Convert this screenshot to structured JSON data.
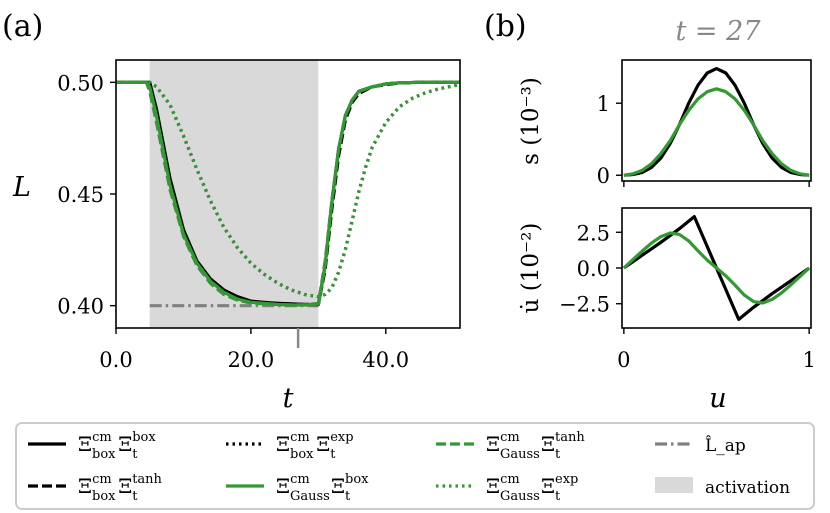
{
  "panel_a": {
    "label": "(a)",
    "xlabel": "t",
    "ylabel": "L",
    "xticks": [
      "0.0",
      "20.0",
      "40.0"
    ],
    "yticks": [
      "0.40",
      "0.45",
      "0.50"
    ]
  },
  "panel_b": {
    "label": "(b)",
    "title": "t = 27",
    "top_ylabel": "s (10⁻³)",
    "bottom_ylabel": "u̇ (10⁻²)",
    "xlabel": "u",
    "top_yticks": [
      "0",
      "1"
    ],
    "bottom_yticks": [
      "−2.5",
      "0.0",
      "2.5"
    ],
    "xticks": [
      "0",
      "1"
    ]
  },
  "legend": [
    {
      "id": "box-box",
      "label": "Ξ_box^cm Ξ_t^box",
      "main": "Ξ",
      "sub1": "box",
      "sup1": "cm",
      "sub2": "t",
      "sup2": "box",
      "color": "#000000",
      "style": "solid"
    },
    {
      "id": "box-tanh",
      "label": "Ξ_box^cm Ξ_t^tanh",
      "main": "Ξ",
      "sub1": "box",
      "sup1": "cm",
      "sub2": "t",
      "sup2": "tanh",
      "color": "#000000",
      "style": "dashed"
    },
    {
      "id": "box-exp",
      "label": "Ξ_box^cm Ξ_t^exp",
      "main": "Ξ",
      "sub1": "box",
      "sup1": "cm",
      "sub2": "t",
      "sup2": "exp",
      "color": "#000000",
      "style": "dotted"
    },
    {
      "id": "gauss-box",
      "label": "Ξ_Gauss^cm Ξ_t^box",
      "main": "Ξ",
      "sub1": "Gauss",
      "sup1": "cm",
      "sub2": "t",
      "sup2": "box",
      "color": "#339933",
      "style": "solid"
    },
    {
      "id": "gauss-tanh",
      "label": "Ξ_Gauss^cm Ξ_t^tanh",
      "main": "Ξ",
      "sub1": "Gauss",
      "sup1": "cm",
      "sub2": "t",
      "sup2": "tanh",
      "color": "#339933",
      "style": "dashed"
    },
    {
      "id": "gauss-exp",
      "label": "Ξ_Gauss^cm Ξ_t^exp",
      "main": "Ξ",
      "sub1": "Gauss",
      "sup1": "cm",
      "sub2": "t",
      "sup2": "exp",
      "color": "#339933",
      "style": "dotted"
    },
    {
      "id": "lap",
      "label": "L̂_ap",
      "color": "#808080",
      "style": "dashdot"
    },
    {
      "id": "activation",
      "label": "activation",
      "color": "#d9d9d9",
      "style": "patch"
    }
  ],
  "chart_data": [
    {
      "type": "line",
      "panel": "a",
      "xlabel": "t",
      "ylabel": "L",
      "xlim": [
        0,
        51
      ],
      "ylim": [
        0.39,
        0.51
      ],
      "activation_span": [
        5,
        30
      ],
      "marker_t": 27,
      "L_ap": {
        "x": [
          5,
          30
        ],
        "y": [
          0.4,
          0.4
        ]
      },
      "series": [
        {
          "name": "box-box",
          "color": "#000000",
          "style": "solid",
          "x": [
            0,
            4.5,
            5,
            6,
            8,
            10,
            12,
            14,
            16,
            18,
            20,
            22,
            24,
            26,
            28,
            30,
            31,
            32,
            33,
            34,
            35,
            36,
            38,
            40,
            42,
            45,
            48,
            51
          ],
          "y": [
            0.5,
            0.5,
            0.5,
            0.488,
            0.457,
            0.434,
            0.42,
            0.412,
            0.407,
            0.404,
            0.402,
            0.4015,
            0.401,
            0.4008,
            0.4005,
            0.4005,
            0.418,
            0.446,
            0.47,
            0.485,
            0.492,
            0.496,
            0.498,
            0.4993,
            0.4998,
            0.5,
            0.5,
            0.5
          ]
        },
        {
          "name": "box-tanh",
          "color": "#000000",
          "style": "dashed",
          "x": [
            0,
            4.5,
            5,
            6,
            8,
            10,
            12,
            14,
            16,
            18,
            20,
            22,
            24,
            26,
            28,
            30,
            31,
            32,
            33,
            34,
            35,
            36,
            38,
            40,
            42,
            45,
            48,
            51
          ],
          "y": [
            0.5,
            0.5,
            0.499,
            0.486,
            0.455,
            0.433,
            0.419,
            0.411,
            0.406,
            0.403,
            0.402,
            0.4013,
            0.401,
            0.4007,
            0.4005,
            0.4007,
            0.416,
            0.443,
            0.467,
            0.483,
            0.491,
            0.495,
            0.498,
            0.499,
            0.4997,
            0.5,
            0.5,
            0.5
          ]
        },
        {
          "name": "box-exp",
          "color": "#000000",
          "style": "dotted",
          "x": [
            0,
            4.5,
            5,
            6,
            8,
            10,
            12,
            14,
            16,
            18,
            20,
            22,
            24,
            26,
            28,
            30,
            31,
            32,
            33,
            34,
            35,
            36,
            37,
            38,
            40,
            42,
            44,
            46,
            48,
            51
          ],
          "y": [
            0.5,
            0.5,
            0.5,
            0.498,
            0.49,
            0.476,
            0.461,
            0.447,
            0.435,
            0.426,
            0.419,
            0.414,
            0.41,
            0.407,
            0.405,
            0.404,
            0.405,
            0.408,
            0.415,
            0.425,
            0.438,
            0.451,
            0.462,
            0.471,
            0.482,
            0.489,
            0.493,
            0.4955,
            0.4972,
            0.499
          ]
        },
        {
          "name": "gauss-box",
          "color": "#339933",
          "style": "solid",
          "x": [
            0,
            4.5,
            5,
            6,
            8,
            10,
            12,
            14,
            16,
            18,
            20,
            22,
            24,
            26,
            28,
            30,
            31,
            32,
            33,
            34,
            35,
            36,
            38,
            40,
            42,
            45,
            48,
            51
          ],
          "y": [
            0.5,
            0.5,
            0.498,
            0.485,
            0.454,
            0.432,
            0.419,
            0.411,
            0.406,
            0.403,
            0.4015,
            0.401,
            0.4005,
            0.4003,
            0.4003,
            0.4007,
            0.418,
            0.446,
            0.47,
            0.485,
            0.492,
            0.496,
            0.498,
            0.4993,
            0.4998,
            0.5,
            0.5,
            0.5
          ]
        },
        {
          "name": "gauss-tanh",
          "color": "#339933",
          "style": "dashed",
          "x": [
            0,
            4.5,
            5,
            6,
            8,
            10,
            12,
            14,
            16,
            18,
            20,
            22,
            24,
            26,
            28,
            30,
            31,
            32,
            33,
            34,
            35,
            36,
            38,
            40,
            42,
            45,
            48,
            51
          ],
          "y": [
            0.5,
            0.5,
            0.496,
            0.482,
            0.452,
            0.431,
            0.418,
            0.41,
            0.405,
            0.4025,
            0.4012,
            0.4008,
            0.4005,
            0.4003,
            0.4004,
            0.401,
            0.42,
            0.447,
            0.47,
            0.485,
            0.492,
            0.496,
            0.498,
            0.4993,
            0.4998,
            0.5,
            0.5,
            0.5
          ]
        },
        {
          "name": "gauss-exp",
          "color": "#339933",
          "style": "dotted",
          "x": [
            0,
            4.5,
            5,
            6,
            8,
            10,
            12,
            14,
            16,
            18,
            20,
            22,
            24,
            26,
            28,
            30,
            31,
            32,
            33,
            34,
            35,
            36,
            37,
            38,
            40,
            42,
            44,
            46,
            48,
            51
          ],
          "y": [
            0.5,
            0.5,
            0.5,
            0.498,
            0.49,
            0.476,
            0.461,
            0.447,
            0.435,
            0.426,
            0.419,
            0.414,
            0.41,
            0.407,
            0.405,
            0.404,
            0.405,
            0.408,
            0.415,
            0.425,
            0.438,
            0.451,
            0.462,
            0.471,
            0.482,
            0.489,
            0.493,
            0.4955,
            0.4972,
            0.499
          ]
        }
      ]
    },
    {
      "type": "line",
      "panel": "b-top",
      "title": "t = 27",
      "xlabel": "u",
      "ylabel": "s (10^-3)",
      "xlim": [
        -0.01,
        1.01
      ],
      "ylim": [
        -0.08,
        1.6
      ],
      "series": [
        {
          "name": "box (black)",
          "color": "#000000",
          "style": "solid",
          "x": [
            0,
            0.05,
            0.1,
            0.15,
            0.2,
            0.25,
            0.3,
            0.35,
            0.4,
            0.45,
            0.5,
            0.55,
            0.6,
            0.65,
            0.7,
            0.75,
            0.8,
            0.85,
            0.9,
            0.95,
            1.0
          ],
          "y": [
            0.0,
            0.01,
            0.04,
            0.11,
            0.24,
            0.44,
            0.7,
            1.0,
            1.25,
            1.42,
            1.48,
            1.42,
            1.25,
            1.0,
            0.7,
            0.44,
            0.24,
            0.11,
            0.04,
            0.01,
            0.0
          ]
        },
        {
          "name": "Gauss (green)",
          "color": "#339933",
          "style": "solid",
          "x": [
            0,
            0.05,
            0.1,
            0.15,
            0.2,
            0.25,
            0.3,
            0.35,
            0.4,
            0.45,
            0.5,
            0.55,
            0.6,
            0.65,
            0.7,
            0.75,
            0.8,
            0.85,
            0.9,
            0.95,
            1.0
          ],
          "y": [
            0.0,
            0.02,
            0.07,
            0.16,
            0.3,
            0.48,
            0.7,
            0.9,
            1.06,
            1.16,
            1.2,
            1.16,
            1.06,
            0.9,
            0.7,
            0.48,
            0.3,
            0.16,
            0.07,
            0.02,
            0.0
          ]
        }
      ]
    },
    {
      "type": "line",
      "panel": "b-bottom",
      "xlabel": "u",
      "ylabel": "u̇ (10^-2)",
      "xlim": [
        -0.01,
        1.01
      ],
      "ylim": [
        -4.2,
        4.2
      ],
      "series": [
        {
          "name": "box (black)",
          "color": "#000000",
          "style": "solid",
          "x": [
            0,
            0.1,
            0.2,
            0.3,
            0.38,
            0.5,
            0.62,
            0.7,
            0.8,
            0.9,
            1.0
          ],
          "y": [
            0.0,
            0.9,
            1.8,
            2.75,
            3.6,
            0.0,
            -3.6,
            -2.75,
            -1.8,
            -0.9,
            0.0
          ]
        },
        {
          "name": "Gauss (green)",
          "color": "#339933",
          "style": "solid",
          "x": [
            0,
            0.05,
            0.1,
            0.15,
            0.2,
            0.25,
            0.3,
            0.35,
            0.4,
            0.45,
            0.5,
            0.55,
            0.6,
            0.65,
            0.7,
            0.75,
            0.8,
            0.85,
            0.9,
            0.95,
            1.0
          ],
          "y": [
            0.0,
            0.6,
            1.2,
            1.75,
            2.2,
            2.45,
            2.35,
            1.9,
            1.2,
            0.55,
            0.0,
            -0.55,
            -1.2,
            -1.9,
            -2.35,
            -2.45,
            -2.2,
            -1.75,
            -1.2,
            -0.6,
            0.0
          ]
        }
      ]
    }
  ]
}
